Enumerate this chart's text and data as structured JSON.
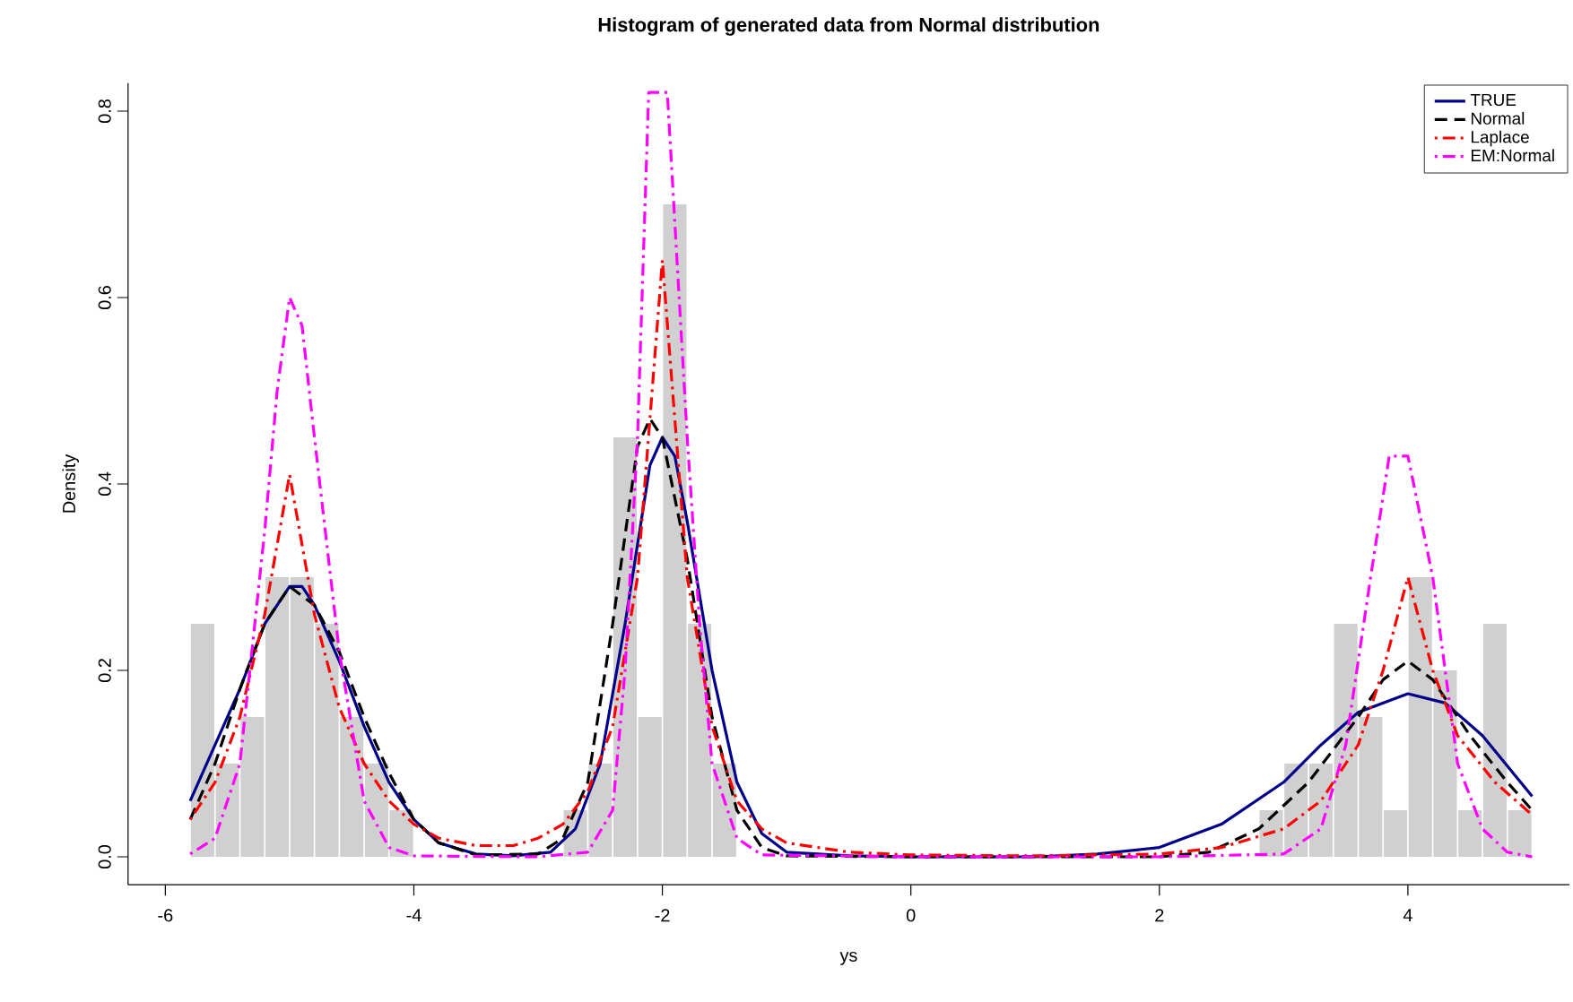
{
  "chart_data": {
    "type": "histogram",
    "title": "Histogram of generated data from Normal distribution",
    "xlabel": "ys",
    "ylabel": "Density",
    "color": "#d0d0d0",
    "bins": [
      -5.8,
      -5.6,
      -5.4,
      -5.2,
      -5.0,
      -4.8,
      -4.6,
      -4.4,
      -4.2,
      -4.0,
      -3.8,
      -3.6,
      -3.4,
      -3.2,
      -3.0,
      -2.8,
      -2.6,
      -2.4,
      -2.2,
      -2.0,
      -1.8,
      -1.6,
      -1.4,
      -1.2,
      -1.0,
      -0.8,
      -0.6,
      -0.4,
      -0.2,
      0.0,
      0.2,
      0.4,
      0.6,
      0.8,
      1.0,
      1.2,
      1.4,
      1.6,
      1.8,
      2.0,
      2.2,
      2.4,
      2.6,
      2.8,
      3.0,
      3.2,
      3.4,
      3.6,
      3.8,
      4.0,
      4.2,
      4.4,
      4.6,
      4.8,
      5.0
    ],
    "values": [
      0.25,
      0.1,
      0.15,
      0.3,
      0.3,
      0.25,
      0.15,
      0.1,
      0.05,
      0,
      0,
      0,
      0,
      0,
      0,
      0.05,
      0.1,
      0.45,
      0.15,
      0.7,
      0.25,
      0.1,
      0,
      0,
      0,
      0,
      0,
      0,
      0,
      0,
      0,
      0,
      0,
      0,
      0,
      0,
      0,
      0,
      0,
      0,
      0,
      0,
      0,
      0.05,
      0.1,
      0.1,
      0.25,
      0.15,
      0.05,
      0.3,
      0.2,
      0.05,
      0.25,
      0.05
    ],
    "series": [
      {
        "name": "TRUE",
        "type": "line",
        "color": "#00008b",
        "line_style": "solid",
        "x": [
          -5.8,
          -5.6,
          -5.4,
          -5.2,
          -5.0,
          -4.9,
          -4.8,
          -4.6,
          -4.4,
          -4.2,
          -4.0,
          -3.8,
          -3.5,
          -3.2,
          -2.9,
          -2.7,
          -2.5,
          -2.3,
          -2.1,
          -2.0,
          -1.9,
          -1.8,
          -1.6,
          -1.4,
          -1.2,
          -1.0,
          -0.5,
          0,
          1,
          1.5,
          2,
          2.5,
          3,
          3.3,
          3.6,
          4.0,
          4.3,
          4.6,
          5.0
        ],
        "values": [
          0.06,
          0.12,
          0.18,
          0.25,
          0.29,
          0.29,
          0.27,
          0.21,
          0.14,
          0.08,
          0.04,
          0.015,
          0.003,
          0.001,
          0.005,
          0.03,
          0.1,
          0.25,
          0.42,
          0.45,
          0.43,
          0.36,
          0.2,
          0.08,
          0.025,
          0.005,
          0.001,
          0,
          0,
          0.003,
          0.01,
          0.035,
          0.08,
          0.12,
          0.155,
          0.175,
          0.165,
          0.13,
          0.065
        ]
      },
      {
        "name": "Normal",
        "type": "line",
        "color": "#000000",
        "line_style": "dashed",
        "x": [
          -5.8,
          -5.6,
          -5.4,
          -5.2,
          -5.0,
          -4.8,
          -4.6,
          -4.4,
          -4.2,
          -4.0,
          -3.8,
          -3.5,
          -3.0,
          -2.8,
          -2.6,
          -2.4,
          -2.2,
          -2.1,
          -2.0,
          -1.8,
          -1.6,
          -1.4,
          -1.2,
          -1.0,
          0,
          2,
          2.4,
          2.8,
          3.2,
          3.6,
          3.8,
          4.0,
          4.2,
          4.5,
          4.8,
          5.0
        ],
        "values": [
          0.04,
          0.1,
          0.18,
          0.25,
          0.29,
          0.27,
          0.22,
          0.15,
          0.09,
          0.04,
          0.015,
          0.002,
          0.003,
          0.02,
          0.08,
          0.25,
          0.44,
          0.47,
          0.45,
          0.32,
          0.15,
          0.05,
          0.01,
          0.001,
          0,
          0,
          0.005,
          0.03,
          0.08,
          0.15,
          0.19,
          0.21,
          0.19,
          0.13,
          0.08,
          0.05
        ]
      },
      {
        "name": "Laplace",
        "type": "line",
        "color": "#ff0000",
        "line_style": "dashdot",
        "x": [
          -5.8,
          -5.6,
          -5.4,
          -5.2,
          -5.0,
          -4.8,
          -4.6,
          -4.4,
          -4.2,
          -4.0,
          -3.8,
          -3.5,
          -3.2,
          -3.0,
          -2.8,
          -2.6,
          -2.4,
          -2.2,
          -2.0,
          -1.8,
          -1.6,
          -1.4,
          -1.2,
          -1.0,
          -0.5,
          0,
          1,
          2,
          2.5,
          3.0,
          3.3,
          3.6,
          3.8,
          4.0,
          4.2,
          4.4,
          4.7,
          5.0
        ],
        "values": [
          0.04,
          0.08,
          0.15,
          0.26,
          0.41,
          0.26,
          0.16,
          0.1,
          0.06,
          0.035,
          0.02,
          0.012,
          0.012,
          0.02,
          0.035,
          0.07,
          0.14,
          0.3,
          0.64,
          0.3,
          0.14,
          0.06,
          0.03,
          0.015,
          0.005,
          0.002,
          0.001,
          0.003,
          0.01,
          0.03,
          0.06,
          0.12,
          0.2,
          0.3,
          0.2,
          0.13,
          0.08,
          0.045
        ]
      },
      {
        "name": "EM:Normal",
        "type": "line",
        "color": "#ff00ff",
        "line_style": "dashdot",
        "x": [
          -5.8,
          -5.6,
          -5.4,
          -5.2,
          -5.1,
          -5.0,
          -4.9,
          -4.8,
          -4.6,
          -4.4,
          -4.2,
          -4.0,
          -3.0,
          -2.6,
          -2.4,
          -2.3,
          -2.2,
          -2.11,
          -1.96,
          -1.8,
          -1.7,
          -1.6,
          -1.4,
          -1.2,
          0,
          2,
          3.0,
          3.3,
          3.5,
          3.7,
          3.85,
          4.0,
          4.2,
          4.4,
          4.6,
          4.8,
          5.0
        ],
        "values": [
          0.003,
          0.02,
          0.1,
          0.35,
          0.5,
          0.6,
          0.57,
          0.45,
          0.22,
          0.06,
          0.01,
          0.001,
          0,
          0.005,
          0.05,
          0.2,
          0.45,
          0.82,
          0.82,
          0.45,
          0.25,
          0.1,
          0.02,
          0.002,
          0,
          0,
          0.003,
          0.03,
          0.12,
          0.3,
          0.43,
          0.43,
          0.3,
          0.1,
          0.03,
          0.005,
          0
        ]
      }
    ],
    "xlim": [
      -6.3,
      5.3
    ],
    "ylim": [
      -0.03,
      0.83
    ],
    "xticks": [
      -6,
      -4,
      -2,
      0,
      2,
      4
    ],
    "yticks": [
      {
        "value": 0,
        "label": "0.0"
      },
      {
        "value": 0.2,
        "label": "0.2"
      },
      {
        "value": 0.4,
        "label": "0.4"
      },
      {
        "value": 0.6,
        "label": "0.6"
      },
      {
        "value": 0.8,
        "label": "0.8"
      }
    ],
    "legend": "top right"
  }
}
